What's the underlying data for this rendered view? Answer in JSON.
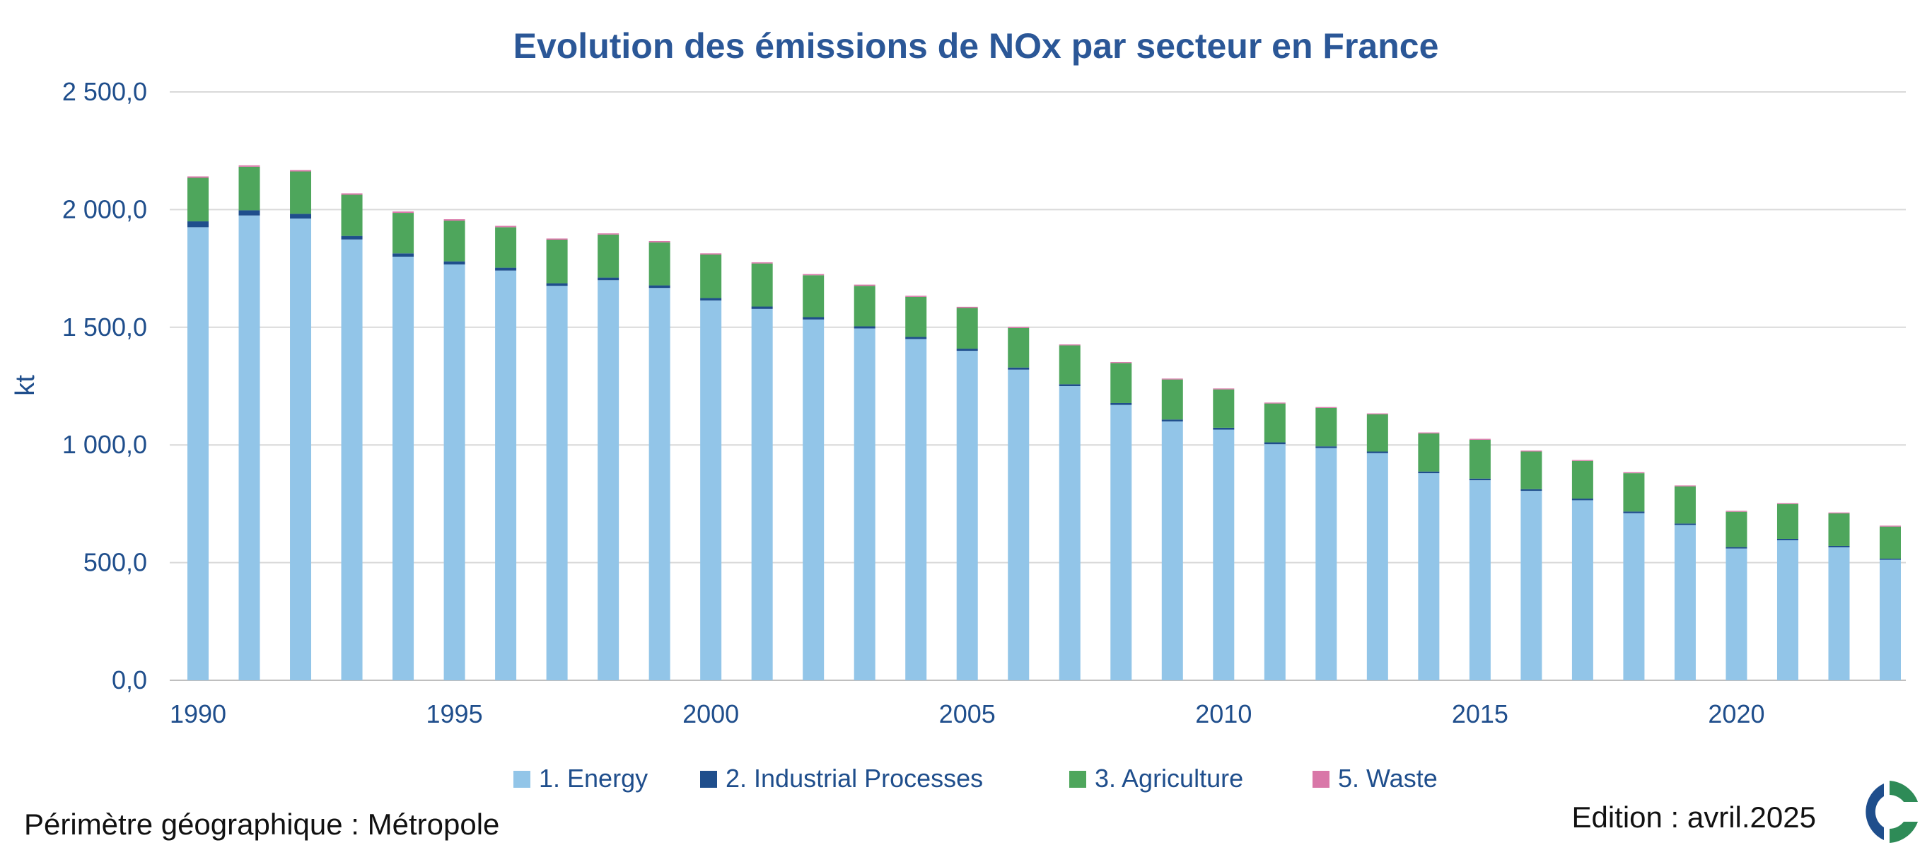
{
  "chart_data": {
    "type": "bar",
    "stacked": true,
    "title": "Evolution des émissions de NOx par secteur en France",
    "ylabel": "kt",
    "xlabel": "",
    "ylim": [
      0,
      2500
    ],
    "yticks": [
      0,
      500,
      1000,
      1500,
      2000,
      2500
    ],
    "ytick_labels": [
      "0,0",
      "500,0",
      "1 000,0",
      "1 500,0",
      "2 000,0",
      "2 500,0"
    ],
    "xtick_labels": [
      "1990",
      "1995",
      "2000",
      "2005",
      "2010",
      "2015",
      "2020"
    ],
    "grid": true,
    "legend_position": "bottom",
    "categories": [
      "1990",
      "1991",
      "1992",
      "1993",
      "1994",
      "1995",
      "1996",
      "1997",
      "1998",
      "1999",
      "2000",
      "2001",
      "2002",
      "2003",
      "2004",
      "2005",
      "2006",
      "2007",
      "2008",
      "2009",
      "2010",
      "2011",
      "2012",
      "2013",
      "2014",
      "2015",
      "2016",
      "2017",
      "2018",
      "2019",
      "2020",
      "2021",
      "2022",
      "2023"
    ],
    "series": [
      {
        "name": "1. Energy",
        "color": "#92c5e8",
        "values": [
          1925,
          1975,
          1962,
          1873,
          1800,
          1767,
          1741,
          1676,
          1700,
          1667,
          1614,
          1578,
          1533,
          1495,
          1450,
          1400,
          1320,
          1250,
          1170,
          1100,
          1065,
          1003,
          987,
          965,
          880,
          850,
          805,
          765,
          710,
          660,
          560,
          595,
          565,
          512
        ]
      },
      {
        "name": "2.  Industrial Processes",
        "color": "#1f4e8c",
        "values": [
          25,
          22,
          20,
          15,
          14,
          13,
          12,
          11,
          11,
          11,
          10,
          10,
          10,
          9,
          9,
          9,
          9,
          8,
          8,
          8,
          8,
          8,
          7,
          7,
          7,
          7,
          7,
          7,
          7,
          6,
          6,
          6,
          6,
          5
        ]
      },
      {
        "name": "3.  Agriculture",
        "color": "#4ea65c",
        "values": [
          185,
          185,
          180,
          175,
          172,
          173,
          172,
          185,
          183,
          183,
          185,
          183,
          178,
          172,
          170,
          173,
          168,
          165,
          170,
          170,
          163,
          165,
          163,
          158,
          162,
          165,
          160,
          160,
          163,
          158,
          150,
          148,
          138,
          136
        ]
      },
      {
        "name": "5.  Waste",
        "color": "#d977a8",
        "values": [
          6,
          6,
          6,
          6,
          6,
          6,
          6,
          5,
          5,
          5,
          5,
          5,
          5,
          5,
          5,
          5,
          5,
          4,
          4,
          4,
          4,
          4,
          4,
          4,
          4,
          4,
          4,
          4,
          4,
          4,
          4,
          4,
          4,
          4
        ]
      }
    ]
  },
  "footer": {
    "left": "Périmètre géographique : Métropole",
    "right": "Edition : avril.2025"
  },
  "logo": {
    "name": "citepa-logo",
    "colors": [
      "#1f4e8c",
      "#2e8b57"
    ]
  }
}
